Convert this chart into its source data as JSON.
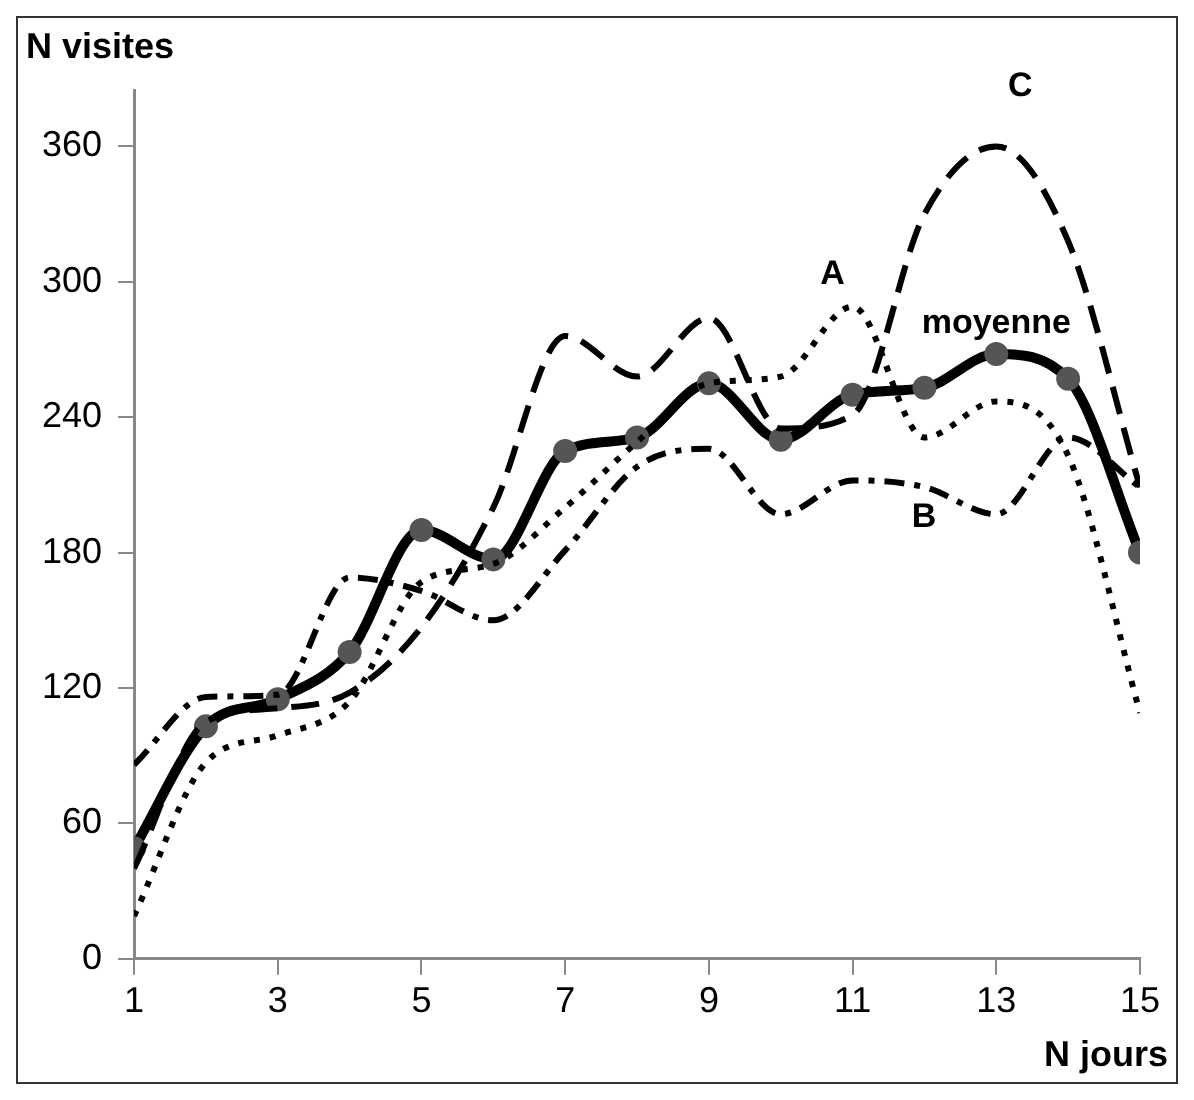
{
  "chart_data": {
    "type": "line",
    "xlabel": "N jours",
    "ylabel": "N visites",
    "x": [
      1,
      2,
      3,
      4,
      5,
      6,
      7,
      8,
      9,
      10,
      11,
      12,
      13,
      14,
      15
    ],
    "xlim": [
      1,
      15
    ],
    "xticks": [
      1,
      3,
      5,
      7,
      9,
      11,
      13,
      15
    ],
    "ylim": [
      0,
      385
    ],
    "yticks": [
      0,
      60,
      120,
      180,
      240,
      300,
      360
    ],
    "grid": false,
    "legend": false,
    "series": [
      {
        "name": "A",
        "color": "#000000",
        "line_style": "dotted",
        "marker": "none",
        "values": [
          19,
          87,
          99,
          114,
          167,
          175,
          200,
          229,
          255,
          258,
          289,
          231,
          247,
          223,
          109
        ]
      },
      {
        "name": "B",
        "color": "#000000",
        "line_style": "dashdot",
        "marker": "none",
        "values": [
          86,
          116,
          117,
          169,
          163,
          150,
          181,
          218,
          226,
          197,
          212,
          209,
          197,
          231,
          209
        ]
      },
      {
        "name": "C",
        "color": "#000000",
        "line_style": "dashed",
        "marker": "none",
        "values": [
          40,
          105,
          111,
          118,
          147,
          200,
          276,
          258,
          284,
          235,
          241,
          330,
          360,
          318,
          209
        ]
      },
      {
        "name": "moyenne",
        "color": "#000000",
        "line_style": "solid",
        "marker": "circle",
        "values": [
          49,
          103,
          115,
          136,
          190,
          177,
          225,
          231,
          255,
          230,
          250,
          253,
          268,
          257,
          180
        ]
      }
    ]
  }
}
